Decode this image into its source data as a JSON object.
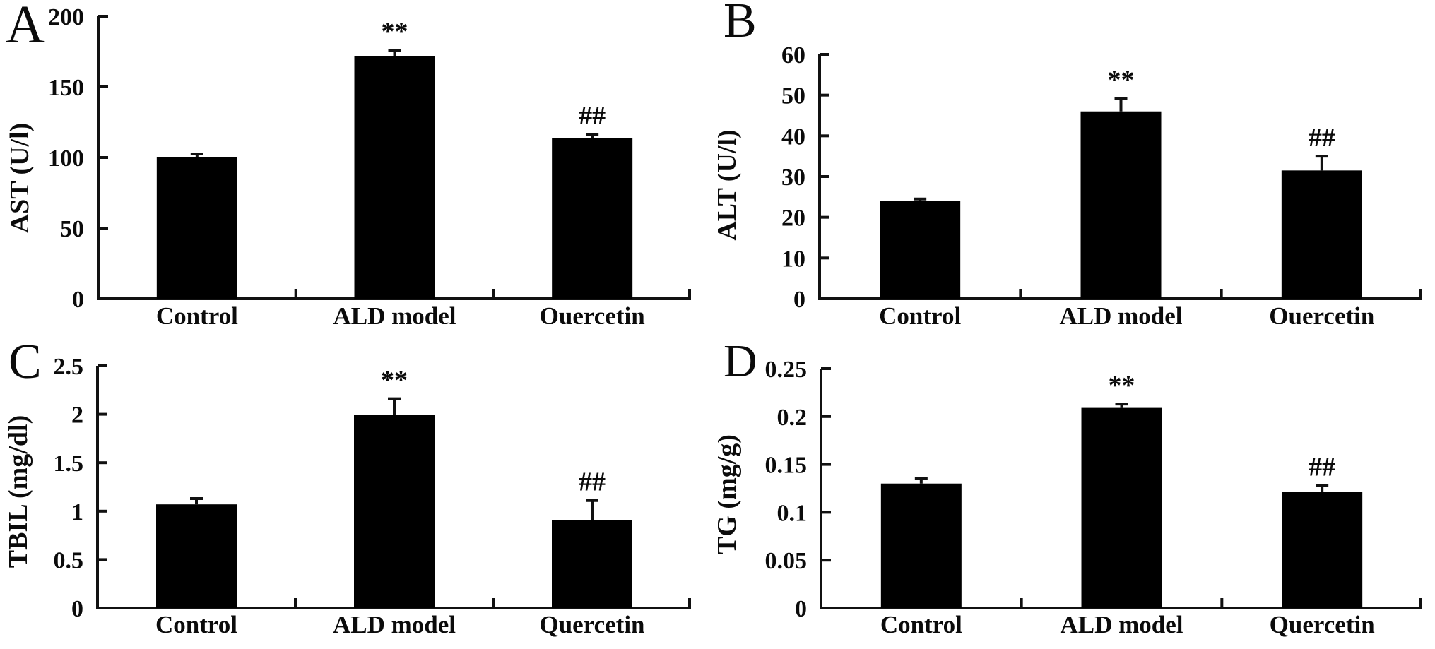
{
  "figure": {
    "background_color": "#ffffff",
    "axis_color": "#111111",
    "bar_color": "#000000",
    "description": "Four-panel bar figure (A-D) of liver biochemistry for Control, ALD model and Quercetin groups"
  },
  "chart_data": [
    {
      "panel": "A",
      "type": "bar",
      "title": "",
      "ylabel": "AST (U/l)",
      "xlabel": "",
      "categories": [
        "Control",
        "ALD model",
        "Quercetin"
      ],
      "values": [
        100,
        171.5,
        114
      ],
      "errors": [
        2.5,
        4.5,
        2.5
      ],
      "significance": [
        "",
        "**",
        "##"
      ],
      "ylim": [
        0,
        200
      ],
      "yticks": [
        0,
        50,
        100,
        150,
        200
      ],
      "ytick_labels": [
        "0",
        "50",
        "100",
        "150",
        "200"
      ],
      "grid": "off",
      "legend": "none",
      "bar_color": "#000000"
    },
    {
      "panel": "B",
      "type": "bar",
      "title": "",
      "ylabel": "ALT (U/l)",
      "xlabel": "",
      "categories": [
        "Control",
        "ALD model",
        "Quercetin"
      ],
      "values": [
        24,
        46,
        31.5
      ],
      "errors": [
        0.5,
        3.2,
        3.5
      ],
      "significance": [
        "",
        "**",
        "##"
      ],
      "ylim": [
        0,
        60
      ],
      "yticks": [
        0,
        10,
        20,
        30,
        40,
        50,
        60
      ],
      "ytick_labels": [
        "0",
        "10",
        "20",
        "30",
        "40",
        "50",
        "60"
      ],
      "grid": "off",
      "legend": "none",
      "bar_color": "#000000"
    },
    {
      "panel": "C",
      "type": "bar",
      "title": "",
      "ylabel": "TBIL (mg/dl)",
      "xlabel": "",
      "categories": [
        "Control",
        "ALD model",
        "Quercetin"
      ],
      "values": [
        1.07,
        1.99,
        0.91
      ],
      "errors": [
        0.06,
        0.17,
        0.2
      ],
      "significance": [
        "",
        "**",
        "##"
      ],
      "ylim": [
        0,
        2.5
      ],
      "yticks": [
        0,
        0.5,
        1,
        1.5,
        2,
        2.5
      ],
      "ytick_labels": [
        "0",
        "0.5",
        "1",
        "1.5",
        "2",
        "2.5"
      ],
      "grid": "off",
      "legend": "none",
      "bar_color": "#000000"
    },
    {
      "panel": "D",
      "type": "bar",
      "title": "",
      "ylabel": "TG (mg/g)",
      "xlabel": "",
      "categories": [
        "Control",
        "ALD model",
        "Quercetin"
      ],
      "values": [
        0.13,
        0.209,
        0.121
      ],
      "errors": [
        0.005,
        0.004,
        0.007
      ],
      "significance": [
        "",
        "**",
        "##"
      ],
      "ylim": [
        0,
        0.25
      ],
      "yticks": [
        0,
        0.05,
        0.1,
        0.15,
        0.2,
        0.25
      ],
      "ytick_labels": [
        "0",
        "0.05",
        "0.1",
        "0.15",
        "0.2",
        "0.25"
      ],
      "grid": "off",
      "legend": "none",
      "bar_color": "#000000"
    }
  ]
}
